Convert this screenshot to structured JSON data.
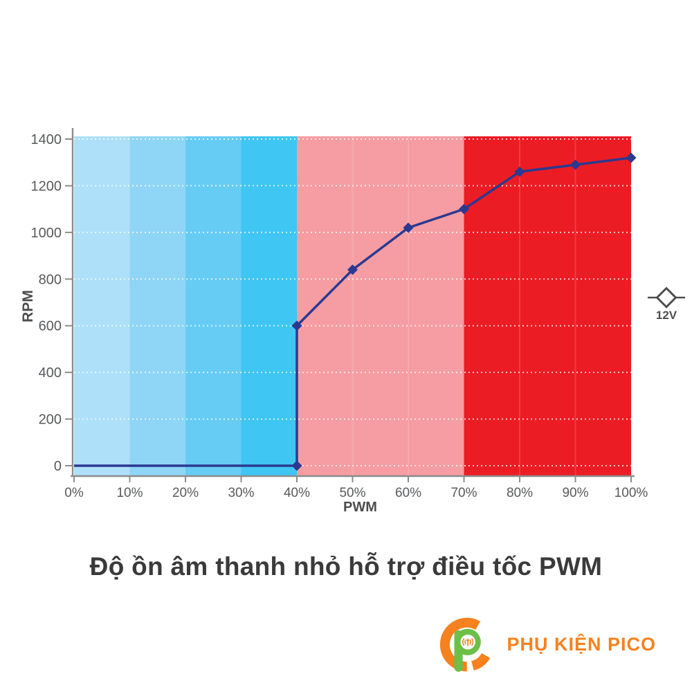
{
  "title": "Độ ồn âm thanh nhỏ hỗ trợ điều tốc PWM",
  "brand": {
    "name": "PHỤ KIỆN PICO",
    "orange": "#F5821F",
    "green": "#6CBF47"
  },
  "axis_style": {
    "line_color": "#8C8C8C",
    "tick_label_color": "#58595B",
    "axis_title_color": "#4D4D4D",
    "grid_color_rgba": "rgba(255,255,255,0.75)"
  },
  "chart_data": {
    "type": "line",
    "title": "",
    "xlabel": "PWM",
    "ylabel": "RPM",
    "xlim": [
      0,
      100
    ],
    "ylim": [
      0,
      1400
    ],
    "x_ticks": [
      "0%",
      "10%",
      "20%",
      "30%",
      "40%",
      "50%",
      "60%",
      "70%",
      "80%",
      "90%",
      "100%"
    ],
    "y_ticks": [
      0,
      200,
      400,
      600,
      800,
      1000,
      1200,
      1400
    ],
    "grid": "horizontal dotted white lines at each y tick",
    "legend": {
      "label": "12V",
      "position": "right-middle",
      "marker": "diamond-on-line",
      "color": "#4D4D4D"
    },
    "bands": [
      {
        "range": [
          0,
          10
        ],
        "color": "#AEE0F9"
      },
      {
        "range": [
          10,
          20
        ],
        "color": "#8FD6F6"
      },
      {
        "range": [
          20,
          30
        ],
        "color": "#67CCF4"
      },
      {
        "range": [
          30,
          40
        ],
        "color": "#3FC6F3"
      },
      {
        "range": [
          40,
          70
        ],
        "color": "#F59DA2"
      },
      {
        "range": [
          70,
          100
        ],
        "color": "#EC1C24"
      }
    ],
    "band_separators": [
      50,
      60,
      80,
      90
    ],
    "series": [
      {
        "name": "12V",
        "color": "#2B3990",
        "marker": "diamond",
        "points": [
          {
            "x": 0,
            "y": 0,
            "marker": false
          },
          {
            "x": 40,
            "y": 0,
            "marker": true
          },
          {
            "x": 40,
            "y": 600,
            "marker": true
          },
          {
            "x": 50,
            "y": 840,
            "marker": true
          },
          {
            "x": 60,
            "y": 1020,
            "marker": true
          },
          {
            "x": 70,
            "y": 1100,
            "marker": true
          },
          {
            "x": 80,
            "y": 1260,
            "marker": true
          },
          {
            "x": 90,
            "y": 1290,
            "marker": true
          },
          {
            "x": 100,
            "y": 1320,
            "marker": true
          }
        ]
      }
    ]
  }
}
